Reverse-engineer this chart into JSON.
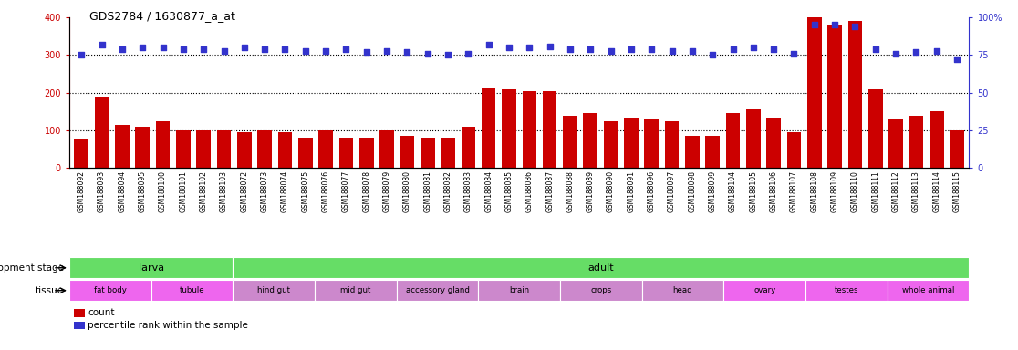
{
  "title": "GDS2784 / 1630877_a_at",
  "samples": [
    "GSM188092",
    "GSM188093",
    "GSM188094",
    "GSM188095",
    "GSM188100",
    "GSM188101",
    "GSM188102",
    "GSM188103",
    "GSM188072",
    "GSM188073",
    "GSM188074",
    "GSM188075",
    "GSM188076",
    "GSM188077",
    "GSM188078",
    "GSM188079",
    "GSM188080",
    "GSM188081",
    "GSM188082",
    "GSM188083",
    "GSM188084",
    "GSM188085",
    "GSM188086",
    "GSM188087",
    "GSM188088",
    "GSM188089",
    "GSM188090",
    "GSM188091",
    "GSM188096",
    "GSM188097",
    "GSM188098",
    "GSM188099",
    "GSM188104",
    "GSM188105",
    "GSM188106",
    "GSM188107",
    "GSM188108",
    "GSM188109",
    "GSM188110",
    "GSM188111",
    "GSM188112",
    "GSM188113",
    "GSM188114",
    "GSM188115"
  ],
  "counts": [
    75,
    190,
    115,
    110,
    125,
    100,
    100,
    100,
    95,
    100,
    95,
    80,
    100,
    80,
    80,
    100,
    85,
    80,
    80,
    110,
    215,
    210,
    205,
    205,
    140,
    145,
    125,
    135,
    130,
    125,
    85,
    85,
    145,
    155,
    135,
    95,
    400,
    380,
    390,
    210,
    130,
    140,
    150,
    100
  ],
  "percentiles": [
    75,
    82,
    79,
    80,
    80,
    79,
    79,
    78,
    80,
    79,
    79,
    78,
    78,
    79,
    77,
    78,
    77,
    76,
    75,
    76,
    82,
    80,
    80,
    81,
    79,
    79,
    78,
    79,
    79,
    78,
    78,
    75,
    79,
    80,
    79,
    76,
    95,
    95,
    94,
    79,
    76,
    77,
    78,
    72
  ],
  "ylim_left": [
    0,
    400
  ],
  "ylim_right": [
    0,
    100
  ],
  "yticks_left": [
    0,
    100,
    200,
    300,
    400
  ],
  "yticks_right": [
    0,
    25,
    50,
    75,
    100
  ],
  "bar_color": "#CC0000",
  "dot_color": "#3333CC",
  "development_stages": [
    {
      "label": "larva",
      "start": 0,
      "end": 8,
      "color": "#66DD66"
    },
    {
      "label": "adult",
      "start": 8,
      "end": 44,
      "color": "#66DD66"
    }
  ],
  "tissues": [
    {
      "label": "fat body",
      "start": 0,
      "end": 4,
      "color": "#EE66EE"
    },
    {
      "label": "tubule",
      "start": 4,
      "end": 8,
      "color": "#EE66EE"
    },
    {
      "label": "hind gut",
      "start": 8,
      "end": 12,
      "color": "#CC88CC"
    },
    {
      "label": "mid gut",
      "start": 12,
      "end": 16,
      "color": "#CC88CC"
    },
    {
      "label": "accessory gland",
      "start": 16,
      "end": 20,
      "color": "#CC88CC"
    },
    {
      "label": "brain",
      "start": 20,
      "end": 24,
      "color": "#CC88CC"
    },
    {
      "label": "crops",
      "start": 24,
      "end": 28,
      "color": "#CC88CC"
    },
    {
      "label": "head",
      "start": 28,
      "end": 32,
      "color": "#CC88CC"
    },
    {
      "label": "ovary",
      "start": 32,
      "end": 36,
      "color": "#EE66EE"
    },
    {
      "label": "testes",
      "start": 36,
      "end": 40,
      "color": "#EE66EE"
    },
    {
      "label": "whole animal",
      "start": 40,
      "end": 44,
      "color": "#EE66EE"
    }
  ],
  "background_color": "#FFFFFF",
  "plot_bg_color": "#FFFFFF",
  "xtick_bg_color": "#CCCCCC"
}
